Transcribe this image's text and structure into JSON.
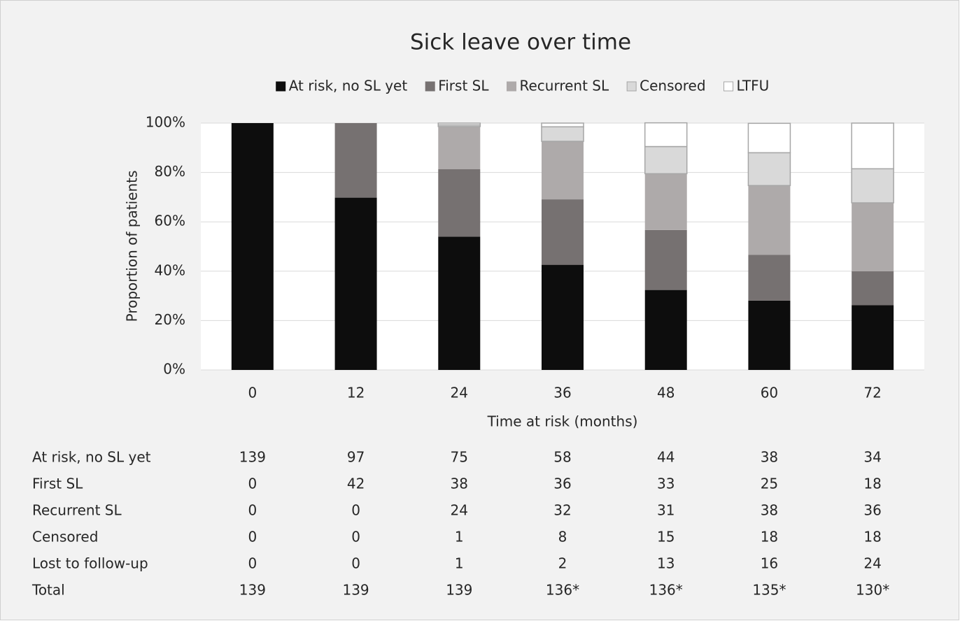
{
  "chart_data": {
    "type": "stacked_bar",
    "title": "Sick leave over time",
    "x_label": "Time at risk (months)",
    "y_label": "Proportion of patients",
    "categories": [
      "0",
      "12",
      "24",
      "36",
      "48",
      "60",
      "72"
    ],
    "series": [
      {
        "name": "At risk, no SL yet",
        "color": "#0d0d0d",
        "values": [
          100,
          69.8,
          54.0,
          42.6,
          32.4,
          28.1,
          26.2
        ]
      },
      {
        "name": "First SL",
        "color": "#767171",
        "values": [
          0,
          30.2,
          27.3,
          26.5,
          24.3,
          18.5,
          13.8
        ]
      },
      {
        "name": "Recurrent SL",
        "color": "#aeaaaa",
        "values": [
          0,
          0,
          17.3,
          23.5,
          22.8,
          28.1,
          27.7
        ]
      },
      {
        "name": "Censored",
        "color": "#d9d9d9",
        "edge_color": "#a6a6a6",
        "values": [
          0,
          0,
          0.7,
          5.9,
          11.0,
          13.3,
          13.8
        ]
      },
      {
        "name": "LTFU",
        "color": "#ffffff",
        "edge_color": "#a6a6a6",
        "values": [
          0,
          0,
          0.7,
          1.5,
          9.6,
          11.9,
          18.5
        ]
      }
    ],
    "ylim": [
      0,
      100
    ],
    "yticks": [
      {
        "value": 0,
        "label": "0%"
      },
      {
        "value": 20,
        "label": "20%"
      },
      {
        "value": 40,
        "label": "40%"
      },
      {
        "value": 60,
        "label": "60%"
      },
      {
        "value": 80,
        "label": "80%"
      },
      {
        "value": 100,
        "label": "100%"
      }
    ],
    "grid": true,
    "legend": "top"
  },
  "table": {
    "rows": [
      {
        "label": "At risk, no SL yet",
        "values": [
          139,
          97,
          75,
          58,
          44,
          38,
          34
        ]
      },
      {
        "label": "First SL",
        "values": [
          0,
          42,
          38,
          36,
          33,
          25,
          18
        ]
      },
      {
        "label": "Recurrent SL",
        "values": [
          0,
          0,
          24,
          32,
          31,
          38,
          36
        ]
      },
      {
        "label": "Censored",
        "values": [
          0,
          0,
          1,
          8,
          15,
          18,
          18
        ]
      },
      {
        "label": "Lost to follow-up",
        "values": [
          0,
          0,
          1,
          2,
          13,
          16,
          24
        ]
      },
      {
        "label": "Total",
        "values": [
          139,
          139,
          139,
          "136*",
          "136*",
          "135*",
          "130*"
        ]
      }
    ]
  }
}
